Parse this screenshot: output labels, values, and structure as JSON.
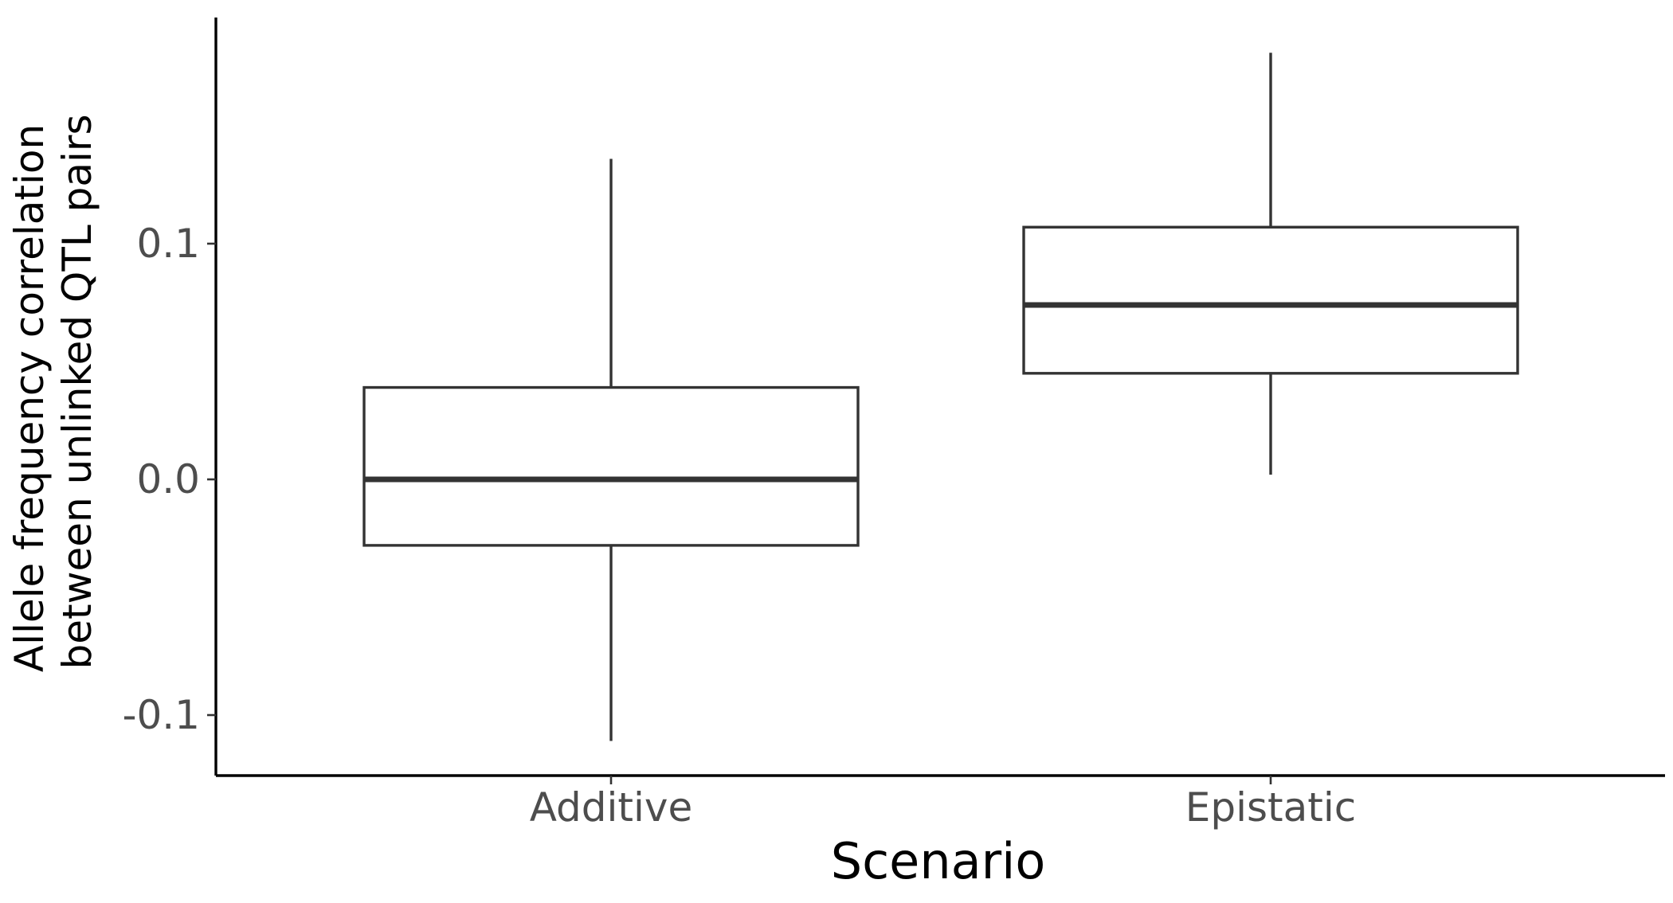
{
  "chart_data": {
    "type": "boxplot",
    "title": "",
    "xlabel": "Scenario",
    "ylabel_lines": [
      "Allele frequency correlation",
      "between unlinked QTL pairs"
    ],
    "categories": [
      "Additive",
      "Epistatic"
    ],
    "boxes": [
      {
        "category": "Additive",
        "whisker_low": -0.111,
        "q1": -0.028,
        "median": 0.0,
        "q3": 0.039,
        "whisker_high": 0.136
      },
      {
        "category": "Epistatic",
        "whisker_low": 0.002,
        "q1": 0.045,
        "median": 0.074,
        "q3": 0.107,
        "whisker_high": 0.181
      }
    ],
    "yticks": [
      -0.1,
      0.0,
      0.1
    ],
    "ytick_labels": [
      "-0.1",
      "0.0",
      "0.1"
    ],
    "ylim": [
      -0.125,
      0.195
    ],
    "grid": false,
    "legend": "none",
    "colors": {
      "box_fill": "#ffffff",
      "box_stroke": "#333333",
      "axis": "#000000",
      "tick_text": "#4d4d4d"
    }
  }
}
